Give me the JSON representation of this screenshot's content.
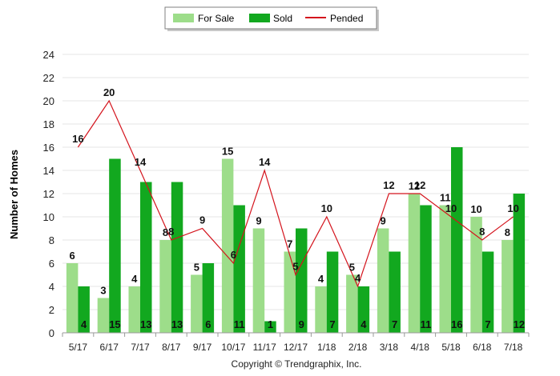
{
  "colors": {
    "for_sale": "#9ddd8a",
    "sold": "#12a81f",
    "pended": "#d4141d"
  },
  "legend": {
    "for_sale": "For Sale",
    "sold": "Sold",
    "pended": "Pended"
  },
  "copyright": "Copyright © Trendgraphix, Inc.",
  "chart_data": {
    "type": "bar",
    "title": "",
    "xlabel": "",
    "ylabel": "Number of Homes",
    "ylim": [
      0,
      24
    ],
    "yticks": [
      0,
      2,
      4,
      6,
      8,
      10,
      12,
      14,
      16,
      18,
      20,
      22,
      24
    ],
    "grid": true,
    "legend_position": "top-center",
    "categories": [
      "5/17",
      "6/17",
      "7/17",
      "8/17",
      "9/17",
      "10/17",
      "11/17",
      "12/17",
      "1/18",
      "2/18",
      "3/18",
      "4/18",
      "5/18",
      "6/18",
      "7/18"
    ],
    "series": [
      {
        "name": "For Sale",
        "type": "bar",
        "values": [
          6,
          3,
          4,
          8,
          5,
          15,
          9,
          7,
          4,
          5,
          9,
          12,
          11,
          10,
          8
        ]
      },
      {
        "name": "Sold",
        "type": "bar",
        "values": [
          4,
          15,
          13,
          13,
          6,
          11,
          1,
          9,
          7,
          4,
          7,
          11,
          16,
          7,
          12
        ]
      },
      {
        "name": "Pended",
        "type": "line",
        "values": [
          16,
          20,
          14,
          8,
          9,
          6,
          14,
          5,
          10,
          4,
          12,
          12,
          10,
          8,
          10
        ]
      }
    ]
  }
}
